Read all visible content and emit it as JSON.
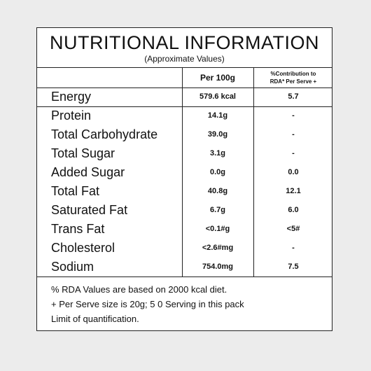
{
  "panel": {
    "title": "NUTRITIONAL INFORMATION",
    "subtitle": "(Approximate Values)",
    "columns": {
      "per_100g": "Per 100g",
      "rda_line1": "%Contribution to",
      "rda_line2": "RDA* Per Serve +"
    },
    "rows": [
      {
        "nutrient": "Energy",
        "per_100g": "579.6 kcal",
        "rda": "5.7"
      },
      {
        "nutrient": "Protein",
        "per_100g": "14.1g",
        "rda": "-"
      },
      {
        "nutrient": "Total Carbohydrate",
        "per_100g": "39.0g",
        "rda": "-"
      },
      {
        "nutrient": "Total Sugar",
        "per_100g": "3.1g",
        "rda": "-"
      },
      {
        "nutrient": "Added Sugar",
        "per_100g": "0.0g",
        "rda": "0.0"
      },
      {
        "nutrient": "Total Fat",
        "per_100g": "40.8g",
        "rda": "12.1"
      },
      {
        "nutrient": "Saturated Fat",
        "per_100g": "6.7g",
        "rda": "6.0"
      },
      {
        "nutrient": "Trans Fat",
        "per_100g": "<0.1#g",
        "rda": "<5#"
      },
      {
        "nutrient": "Cholesterol",
        "per_100g": "<2.6#mg",
        "rda": "-"
      },
      {
        "nutrient": "Sodium",
        "per_100g": "754.0mg",
        "rda": "7.5"
      }
    ],
    "footer": {
      "line1": "% RDA Values are based on 2000 kcal diet.",
      "line2": "+ Per Serve size is 20g; 5 0 Serving in this pack",
      "line3": "Limit of quantification."
    }
  },
  "colors": {
    "page_background": "#ececec",
    "panel_background": "#ffffff",
    "text": "#111111"
  }
}
